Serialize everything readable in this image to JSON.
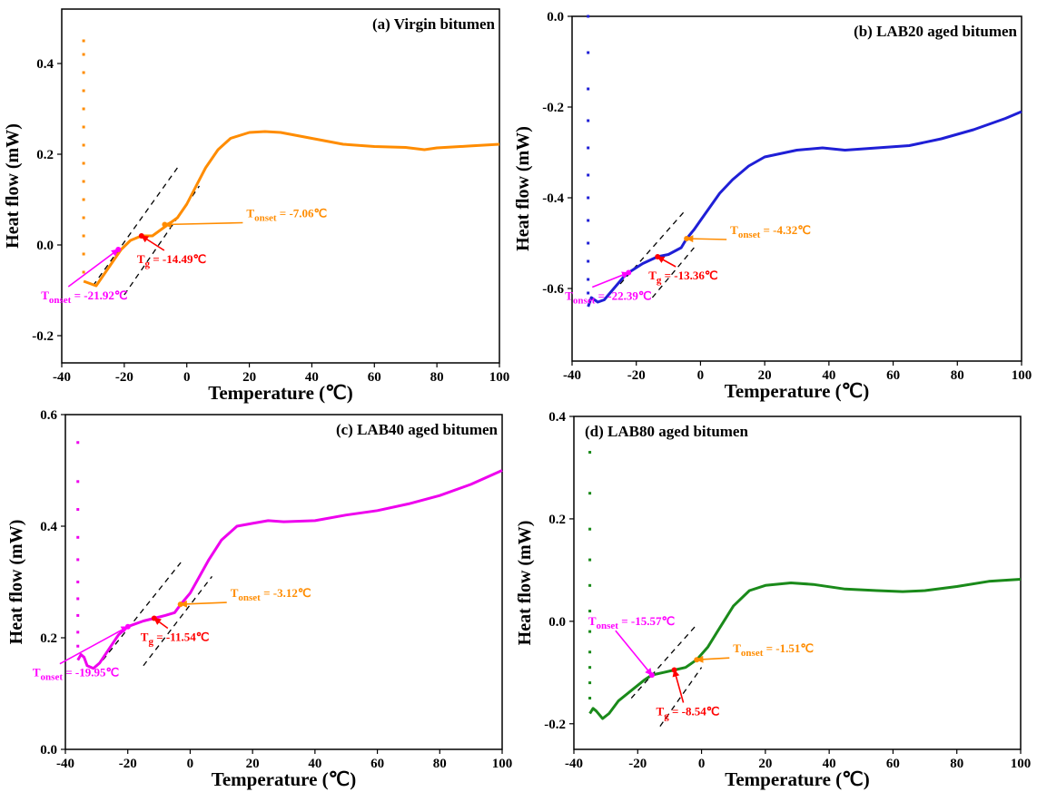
{
  "chart_data": [
    {
      "type": "line",
      "title": "(a) Virgin bitumen",
      "xlabel": "Temperature (℃)",
      "ylabel": "Heat flow (mW)",
      "xlim": [
        -40,
        100
      ],
      "xticks": [
        -40,
        -20,
        0,
        20,
        40,
        60,
        80,
        100
      ],
      "ylim": [
        -0.26,
        0.52
      ],
      "yticks": [
        -0.2,
        {
          "value": 0,
          "label": "0.0"
        },
        0.2,
        0.4
      ],
      "color": "#ff8c00",
      "transient_x": [
        -33,
        -33,
        -33,
        -33,
        -33,
        -33,
        -33,
        -33,
        -33,
        -33,
        -33,
        -33,
        -33,
        -33
      ],
      "transient_values": [
        0.45,
        0.42,
        0.38,
        0.34,
        0.3,
        0.26,
        0.22,
        0.18,
        0.14,
        0.1,
        0.06,
        0.02,
        -0.02,
        -0.06
      ],
      "x": [
        -33,
        -31,
        -29,
        -27,
        -24,
        -21,
        -18,
        -14.5,
        -11,
        -7,
        -3,
        0,
        3,
        6,
        10,
        14,
        20,
        25,
        30,
        40,
        50,
        60,
        70,
        76,
        80,
        90,
        100
      ],
      "values": [
        -0.08,
        -0.085,
        -0.09,
        -0.07,
        -0.04,
        -0.01,
        0.01,
        0.02,
        0.02,
        0.04,
        0.06,
        0.09,
        0.13,
        0.17,
        0.21,
        0.235,
        0.248,
        0.25,
        0.248,
        0.235,
        0.222,
        0.217,
        0.215,
        0.21,
        0.214,
        0.218,
        0.222
      ],
      "tangents": [
        [
          -30,
          -0.09,
          -3,
          0.17
        ],
        [
          -20,
          -0.11,
          4,
          0.13
        ]
      ],
      "annotations": [
        {
          "label": "T",
          "sub": "onset",
          "text": " = -21.92℃",
          "x": -21.92,
          "y": -0.01,
          "color": "#ff00ff"
        },
        {
          "label": "T",
          "sub": "g",
          "text": " = -14.49℃",
          "x": -14.49,
          "y": 0.02,
          "color": "#ff0000"
        },
        {
          "label": "T",
          "sub": "onset",
          "text": " = -7.06℃",
          "x": -7.06,
          "y": 0.045,
          "color": "#ff8c00"
        }
      ]
    },
    {
      "type": "line",
      "title": "(b) LAB20 aged bitumen",
      "xlabel": "Temperature (℃)",
      "ylabel": "Heat flow (mW)",
      "xlim": [
        -40,
        100
      ],
      "xticks": [
        -40,
        -20,
        0,
        20,
        40,
        60,
        80,
        100
      ],
      "ylim": [
        -0.76,
        0
      ],
      "yticks": [
        -0.6,
        -0.4,
        -0.2,
        {
          "value": 0,
          "label": "0.0"
        }
      ],
      "color": "#1f1fd6",
      "transient_x": [
        -35,
        -35,
        -35,
        -35,
        -35,
        -35,
        -35,
        -35,
        -35,
        -35,
        -35,
        -35
      ],
      "transient_values": [
        0,
        -0.08,
        -0.16,
        -0.23,
        -0.29,
        -0.35,
        -0.4,
        -0.45,
        -0.5,
        -0.54,
        -0.58,
        -0.61
      ],
      "x": [
        -35,
        -34,
        -32,
        -30,
        -27,
        -24,
        -22.4,
        -18,
        -13.4,
        -10,
        -6,
        -4.3,
        -2,
        0,
        3,
        6,
        10,
        15,
        20,
        30,
        38,
        45,
        55,
        65,
        75,
        85,
        95,
        100
      ],
      "values": [
        -0.64,
        -0.62,
        -0.63,
        -0.625,
        -0.6,
        -0.575,
        -0.565,
        -0.545,
        -0.53,
        -0.525,
        -0.51,
        -0.49,
        -0.47,
        -0.45,
        -0.42,
        -0.39,
        -0.36,
        -0.33,
        -0.31,
        -0.295,
        -0.29,
        -0.295,
        -0.29,
        -0.285,
        -0.27,
        -0.25,
        -0.225,
        -0.21
      ],
      "tangents": [
        [
          -25,
          -0.59,
          -5,
          -0.43
        ],
        [
          -15,
          -0.62,
          -2,
          -0.51
        ]
      ],
      "annotations": [
        {
          "label": "T",
          "sub": "onset",
          "text": " = -22.39℃",
          "x": -22.39,
          "y": -0.565,
          "color": "#ff00ff"
        },
        {
          "label": "T",
          "sub": "g",
          "text": " = -13.36℃",
          "x": -13.36,
          "y": -0.53,
          "color": "#ff0000"
        },
        {
          "label": "T",
          "sub": "onset",
          "text": " = -4.32℃",
          "x": -4.32,
          "y": -0.49,
          "color": "#ff8c00"
        }
      ]
    },
    {
      "type": "line",
      "title": "(c) LAB40 aged bitumen",
      "xlabel": "Temperature (℃)",
      "ylabel": "Heat flow (mW)",
      "xlim": [
        -40,
        100
      ],
      "xticks": [
        -40,
        -20,
        0,
        20,
        40,
        60,
        80,
        100
      ],
      "ylim": [
        0,
        0.6
      ],
      "yticks": [
        {
          "value": 0,
          "label": "0.0"
        },
        0.2,
        0.4,
        0.6
      ],
      "color": "#ee00ee",
      "transient_x": [
        -36,
        -36,
        -36,
        -36,
        -36,
        -36,
        -36,
        -36,
        -36,
        -36
      ],
      "transient_values": [
        0.55,
        0.48,
        0.43,
        0.38,
        0.34,
        0.3,
        0.27,
        0.24,
        0.21,
        0.185
      ],
      "x": [
        -36,
        -35,
        -34,
        -33,
        -31,
        -29,
        -26,
        -23,
        -20,
        -15,
        -11.5,
        -8,
        -5,
        -3,
        0,
        3,
        6,
        10,
        15,
        20,
        25,
        30,
        40,
        50,
        60,
        70,
        80,
        90,
        100
      ],
      "values": [
        0.16,
        0.17,
        0.165,
        0.15,
        0.145,
        0.155,
        0.18,
        0.205,
        0.22,
        0.23,
        0.235,
        0.24,
        0.245,
        0.26,
        0.28,
        0.31,
        0.34,
        0.375,
        0.4,
        0.405,
        0.41,
        0.408,
        0.41,
        0.42,
        0.428,
        0.44,
        0.455,
        0.475,
        0.5
      ],
      "tangents": [
        [
          -28,
          0.16,
          -3,
          0.335
        ],
        [
          -15,
          0.15,
          7,
          0.31
        ]
      ],
      "annotations": [
        {
          "label": "T",
          "sub": "onset",
          "text": " = -19.95℃",
          "x": -19.95,
          "y": 0.22,
          "color": "#ff00ff"
        },
        {
          "label": "T",
          "sub": "g",
          "text": " = -11.54℃",
          "x": -11.54,
          "y": 0.235,
          "color": "#ff0000"
        },
        {
          "label": "T",
          "sub": "onset",
          "text": " = -3.12℃",
          "x": -3.12,
          "y": 0.26,
          "color": "#ff8c00"
        }
      ]
    },
    {
      "type": "line",
      "title": "(d) LAB80 aged bitumen",
      "xlabel": "Temperature (℃)",
      "ylabel": "Heat flow (mW)",
      "xlim": [
        -40,
        100
      ],
      "xticks": [
        -40,
        -20,
        0,
        20,
        40,
        60,
        80,
        100
      ],
      "ylim": [
        -0.25,
        0.4
      ],
      "yticks": [
        -0.2,
        {
          "value": 0,
          "label": "0.0"
        },
        0.2,
        0.4
      ],
      "color": "#1a8a1a",
      "transient_x": [
        -35,
        -35,
        -35,
        -35,
        -35,
        -35,
        -35,
        -35,
        -35,
        -35,
        -35
      ],
      "transient_values": [
        0.33,
        0.25,
        0.18,
        0.12,
        0.07,
        0.02,
        -0.02,
        -0.06,
        -0.09,
        -0.12,
        -0.15
      ],
      "x": [
        -35,
        -34,
        -33,
        -31,
        -29,
        -26,
        -22,
        -18,
        -15.6,
        -12,
        -8.5,
        -5,
        -1.5,
        2,
        5,
        10,
        15,
        20,
        28,
        35,
        45,
        55,
        63,
        70,
        80,
        90,
        100
      ],
      "values": [
        -0.18,
        -0.17,
        -0.175,
        -0.19,
        -0.18,
        -0.155,
        -0.135,
        -0.115,
        -0.105,
        -0.1,
        -0.095,
        -0.09,
        -0.075,
        -0.05,
        -0.02,
        0.03,
        0.06,
        0.07,
        0.075,
        0.072,
        0.063,
        0.06,
        0.058,
        0.06,
        0.068,
        0.078,
        0.082
      ],
      "tangents": [
        [
          -22,
          -0.15,
          -2,
          -0.01
        ],
        [
          -13,
          -0.205,
          0,
          -0.09
        ]
      ],
      "annotations": [
        {
          "label": "T",
          "sub": "onset",
          "text": " = -15.57℃",
          "x": -15.57,
          "y": -0.105,
          "color": "#ff00ff"
        },
        {
          "label": "T",
          "sub": "g",
          "text": " = -8.54℃",
          "x": -8.54,
          "y": -0.095,
          "color": "#ff0000"
        },
        {
          "label": "T",
          "sub": "onset",
          "text": " = -1.51℃",
          "x": -1.51,
          "y": -0.075,
          "color": "#ff8c00"
        }
      ]
    }
  ]
}
